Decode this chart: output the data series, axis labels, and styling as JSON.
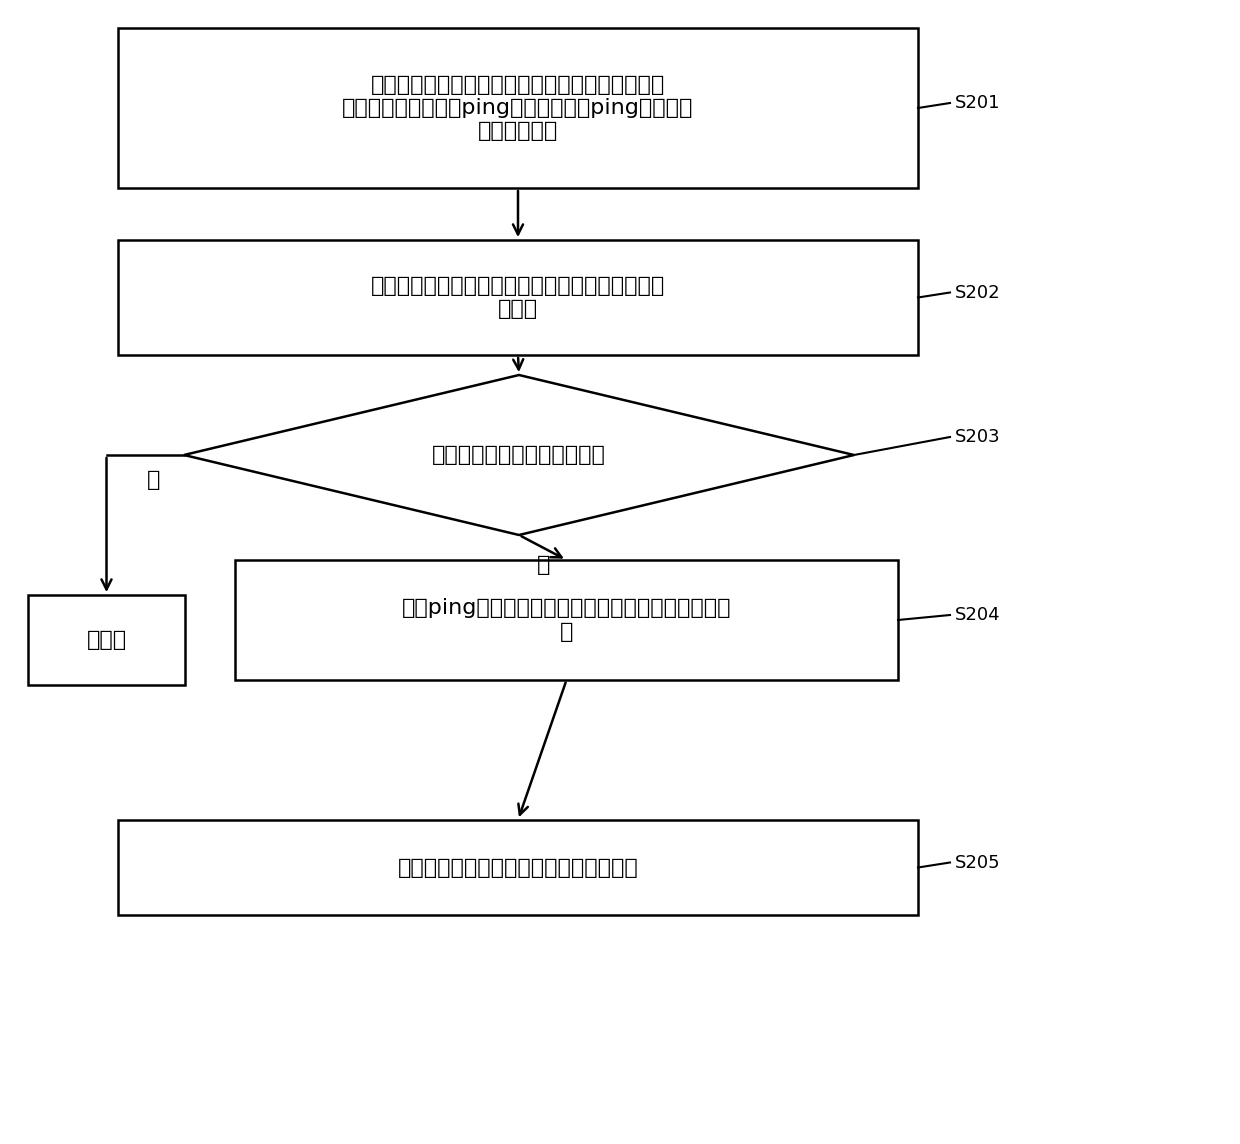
{
  "bg_color": "#ffffff",
  "text_color": "#000000",
  "line_color": "#000000",
  "font_size_main": 16,
  "font_size_label": 13,
  "lw": 1.8,
  "s201_text": "在存储集群中的第一节点接收到第二节点按照预设\n心跳频率定时发送的ping消息时，记录ping消息对应\n的心跳时间戳",
  "s202_text": "计算当前的心跳时间戳与上次记录的心跳时间戳的\n时间差",
  "s203_text": "判断时间差是否大于预设阈值",
  "s204_text": "判定ping消息超时，并将超时统计信息发送给第一节\n点",
  "snoop_text": "无操作",
  "s205_text": "输出第一节点与第二节点通信异常的信息",
  "yes_text": "是",
  "no_text": "否",
  "labels": [
    "S201",
    "S202",
    "S203",
    "S204",
    "S205"
  ]
}
